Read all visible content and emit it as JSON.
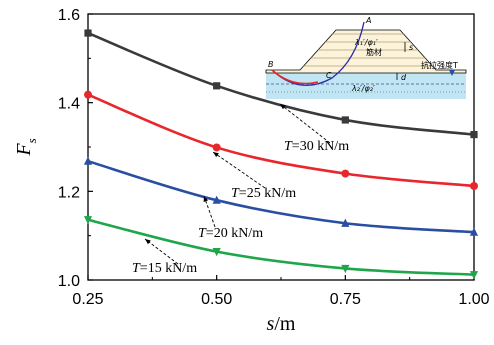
{
  "chart_data": {
    "type": "line",
    "xlabel": "s/m",
    "ylabel": "Fs",
    "xlim": [
      0.25,
      1.0
    ],
    "ylim": [
      1.0,
      1.6
    ],
    "xticks": [
      "0.25",
      "0.50",
      "0.75",
      "1.00"
    ],
    "yticks": [
      "1.0",
      "1.2",
      "1.4",
      "1.6"
    ],
    "series": [
      {
        "name": "T=30 kN/m",
        "color": "#3a3a3a",
        "marker": "square",
        "x": [
          0.25,
          0.5,
          0.75,
          1.0
        ],
        "y": [
          1.557,
          1.438,
          1.361,
          1.328
        ]
      },
      {
        "name": "T=25 kN/m",
        "color": "#e8262b",
        "marker": "circle",
        "x": [
          0.25,
          0.5,
          0.75,
          1.0
        ],
        "y": [
          1.418,
          1.299,
          1.24,
          1.212
        ]
      },
      {
        "name": "T=20 kN/m",
        "color": "#2a4ea3",
        "marker": "triangle-up",
        "x": [
          0.25,
          0.5,
          0.75,
          1.0
        ],
        "y": [
          1.268,
          1.18,
          1.128,
          1.108
        ]
      },
      {
        "name": "T=15 kN/m",
        "color": "#1fa64a",
        "marker": "triangle-down",
        "x": [
          0.25,
          0.5,
          0.75,
          1.0
        ],
        "y": [
          1.136,
          1.064,
          1.026,
          1.012
        ]
      }
    ],
    "annotations": [
      {
        "series": 0,
        "label_parts": [
          "T",
          "=30 kN/m"
        ]
      },
      {
        "series": 1,
        "label_parts": [
          "T",
          "=25 kN/m"
        ]
      },
      {
        "series": 2,
        "label_parts": [
          "T",
          "=20 kN/m"
        ]
      },
      {
        "series": 3,
        "label_parts": [
          "T",
          "=15 kN/m"
        ]
      }
    ]
  },
  "inset": {
    "label_A": "A",
    "label_B": "B",
    "label_C": "C",
    "label_s": "s",
    "label_d": "d",
    "label_reinforcement": "筋材",
    "label_tensile_strength": "抗拉强度T",
    "label_upper_soil": "λ₁′/φ₁′",
    "label_lower_soil": "λ₂′/φ₂′"
  }
}
